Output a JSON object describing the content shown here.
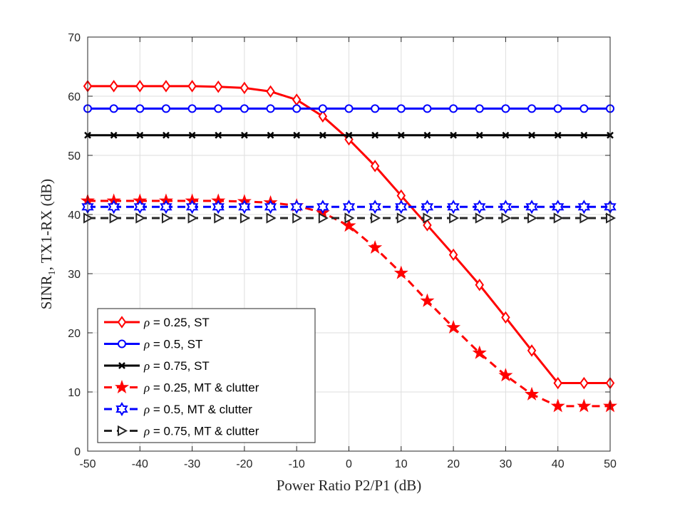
{
  "chart_data": {
    "type": "line",
    "title": "",
    "xlabel": "Power Ratio P2/P1 (dB)",
    "ylabel_main": "SINR",
    "ylabel_sub": "1",
    "ylabel_rest": ", TX1-RX (dB)",
    "xlim": [
      -50,
      50
    ],
    "ylim": [
      0,
      70
    ],
    "xticks": [
      -50,
      -40,
      -30,
      -20,
      -10,
      0,
      10,
      20,
      30,
      40,
      50
    ],
    "yticks": [
      0,
      10,
      20,
      30,
      40,
      50,
      60,
      70
    ],
    "grid": true,
    "legend_position": "bottom-left",
    "x": [
      -50,
      -45,
      -40,
      -35,
      -30,
      -25,
      -20,
      -15,
      -10,
      -5,
      0,
      5,
      10,
      15,
      20,
      25,
      30,
      35,
      40,
      45,
      50
    ],
    "series": [
      {
        "rho": "ρ",
        "name": " = 0.25, ST",
        "color": "#ff0000",
        "dash": "solid",
        "marker": "diamond",
        "values": [
          61.7,
          61.7,
          61.7,
          61.7,
          61.7,
          61.6,
          61.4,
          60.8,
          59.4,
          56.6,
          52.7,
          48.2,
          43.2,
          38.2,
          33.2,
          28.1,
          22.6,
          17.0,
          11.5,
          11.5,
          11.5
        ]
      },
      {
        "rho": "ρ",
        "name": " = 0.5, ST",
        "color": "#0000ff",
        "dash": "solid",
        "marker": "circle",
        "values": [
          57.9,
          57.9,
          57.9,
          57.9,
          57.9,
          57.9,
          57.9,
          57.9,
          57.9,
          57.9,
          57.9,
          57.9,
          57.9,
          57.9,
          57.9,
          57.9,
          57.9,
          57.9,
          57.9,
          57.9,
          57.9
        ]
      },
      {
        "rho": "ρ",
        "name": " = 0.75, ST",
        "color": "#000000",
        "dash": "solid",
        "marker": "x",
        "values": [
          53.4,
          53.4,
          53.4,
          53.4,
          53.4,
          53.4,
          53.4,
          53.4,
          53.4,
          53.4,
          53.4,
          53.4,
          53.4,
          53.4,
          53.4,
          53.4,
          53.4,
          53.4,
          53.4,
          53.4,
          53.4
        ]
      },
      {
        "rho": "ρ",
        "name": " = 0.25, MT & clutter",
        "color": "#ff0000",
        "dash": "dashed",
        "marker": "star5",
        "values": [
          42.3,
          42.3,
          42.3,
          42.3,
          42.3,
          42.3,
          42.2,
          42.0,
          41.5,
          40.3,
          38.1,
          34.4,
          30.1,
          25.4,
          20.9,
          16.6,
          12.8,
          9.6,
          7.6,
          7.6,
          7.6
        ]
      },
      {
        "rho": "ρ",
        "name": " = 0.5, MT & clutter",
        "color": "#0000ff",
        "dash": "dashed",
        "marker": "hexagram",
        "values": [
          41.3,
          41.3,
          41.3,
          41.3,
          41.3,
          41.3,
          41.3,
          41.3,
          41.3,
          41.3,
          41.3,
          41.3,
          41.3,
          41.3,
          41.3,
          41.3,
          41.3,
          41.3,
          41.3,
          41.3,
          41.3
        ]
      },
      {
        "rho": "ρ",
        "name": " = 0.75, MT & clutter",
        "color": "#262626",
        "dash": "dashed",
        "marker": "triangle-right",
        "values": [
          39.4,
          39.4,
          39.4,
          39.4,
          39.4,
          39.4,
          39.4,
          39.4,
          39.4,
          39.4,
          39.4,
          39.4,
          39.4,
          39.4,
          39.4,
          39.4,
          39.4,
          39.4,
          39.4,
          39.4,
          39.4
        ]
      }
    ]
  }
}
